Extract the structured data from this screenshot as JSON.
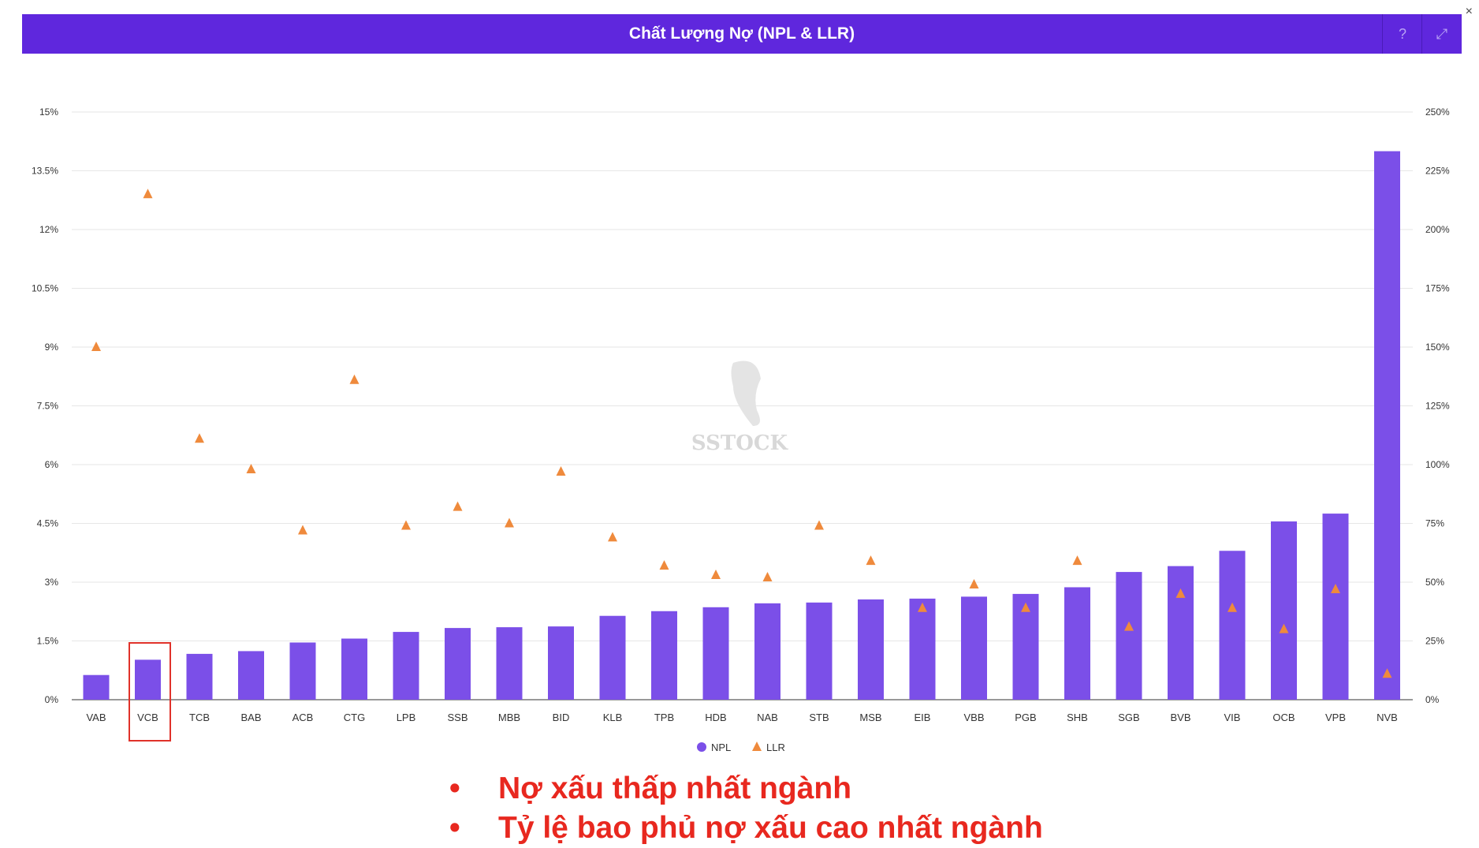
{
  "header": {
    "title": "Chất Lượng Nợ (NPL & LLR)",
    "help_icon": "question-circle-icon",
    "expand_icon": "expand-icon",
    "close_label": "×"
  },
  "watermark": "SSTOCK",
  "notes": [
    "Nợ xấu thấp nhất ngành",
    "Tỷ lệ bao phủ nợ xấu cao nhất ngành"
  ],
  "bullet": "•",
  "colors": {
    "npl": "#7b4fe8",
    "llr": "#ef8a3c",
    "header": "#5f27dd",
    "highlight": "#e0322a"
  },
  "chart_data": {
    "type": "bar",
    "title": "Chất Lượng Nợ (NPL & LLR)",
    "categories": [
      "VAB",
      "VCB",
      "TCB",
      "BAB",
      "ACB",
      "CTG",
      "LPB",
      "SSB",
      "MBB",
      "BID",
      "KLB",
      "TPB",
      "HDB",
      "NAB",
      "STB",
      "MSB",
      "EIB",
      "VBB",
      "PGB",
      "SHB",
      "SGB",
      "BVB",
      "VIB",
      "OCB",
      "VPB",
      "NVB"
    ],
    "series": [
      {
        "name": "NPL",
        "type": "bar",
        "axis": "left",
        "values": [
          0.63,
          1.02,
          1.17,
          1.24,
          1.46,
          1.56,
          1.73,
          1.83,
          1.85,
          1.87,
          2.14,
          2.26,
          2.36,
          2.46,
          2.48,
          2.56,
          2.58,
          2.63,
          2.7,
          2.87,
          3.26,
          3.41,
          3.8,
          4.55,
          4.75,
          14.0
        ]
      },
      {
        "name": "LLR",
        "type": "scatter",
        "axis": "right",
        "values": [
          150,
          215,
          111,
          98,
          72,
          136,
          74,
          82,
          75,
          97,
          69,
          57,
          53,
          52,
          74,
          59,
          39,
          49,
          39,
          59,
          31,
          45,
          39,
          30,
          47,
          11
        ]
      }
    ],
    "left_ticks": [
      "0%",
      "1.5%",
      "3%",
      "4.5%",
      "6%",
      "7.5%",
      "9%",
      "10.5%",
      "12%",
      "13.5%",
      "15%"
    ],
    "right_ticks": [
      "0%",
      "25%",
      "50%",
      "75%",
      "100%",
      "125%",
      "150%",
      "175%",
      "200%",
      "225%",
      "250%"
    ],
    "ylim": [
      0,
      15
    ],
    "y2lim": [
      0,
      250
    ],
    "legend": [
      "NPL",
      "LLR"
    ],
    "legend_position": "bottom",
    "grid": true,
    "highlighted_category": "VCB"
  }
}
